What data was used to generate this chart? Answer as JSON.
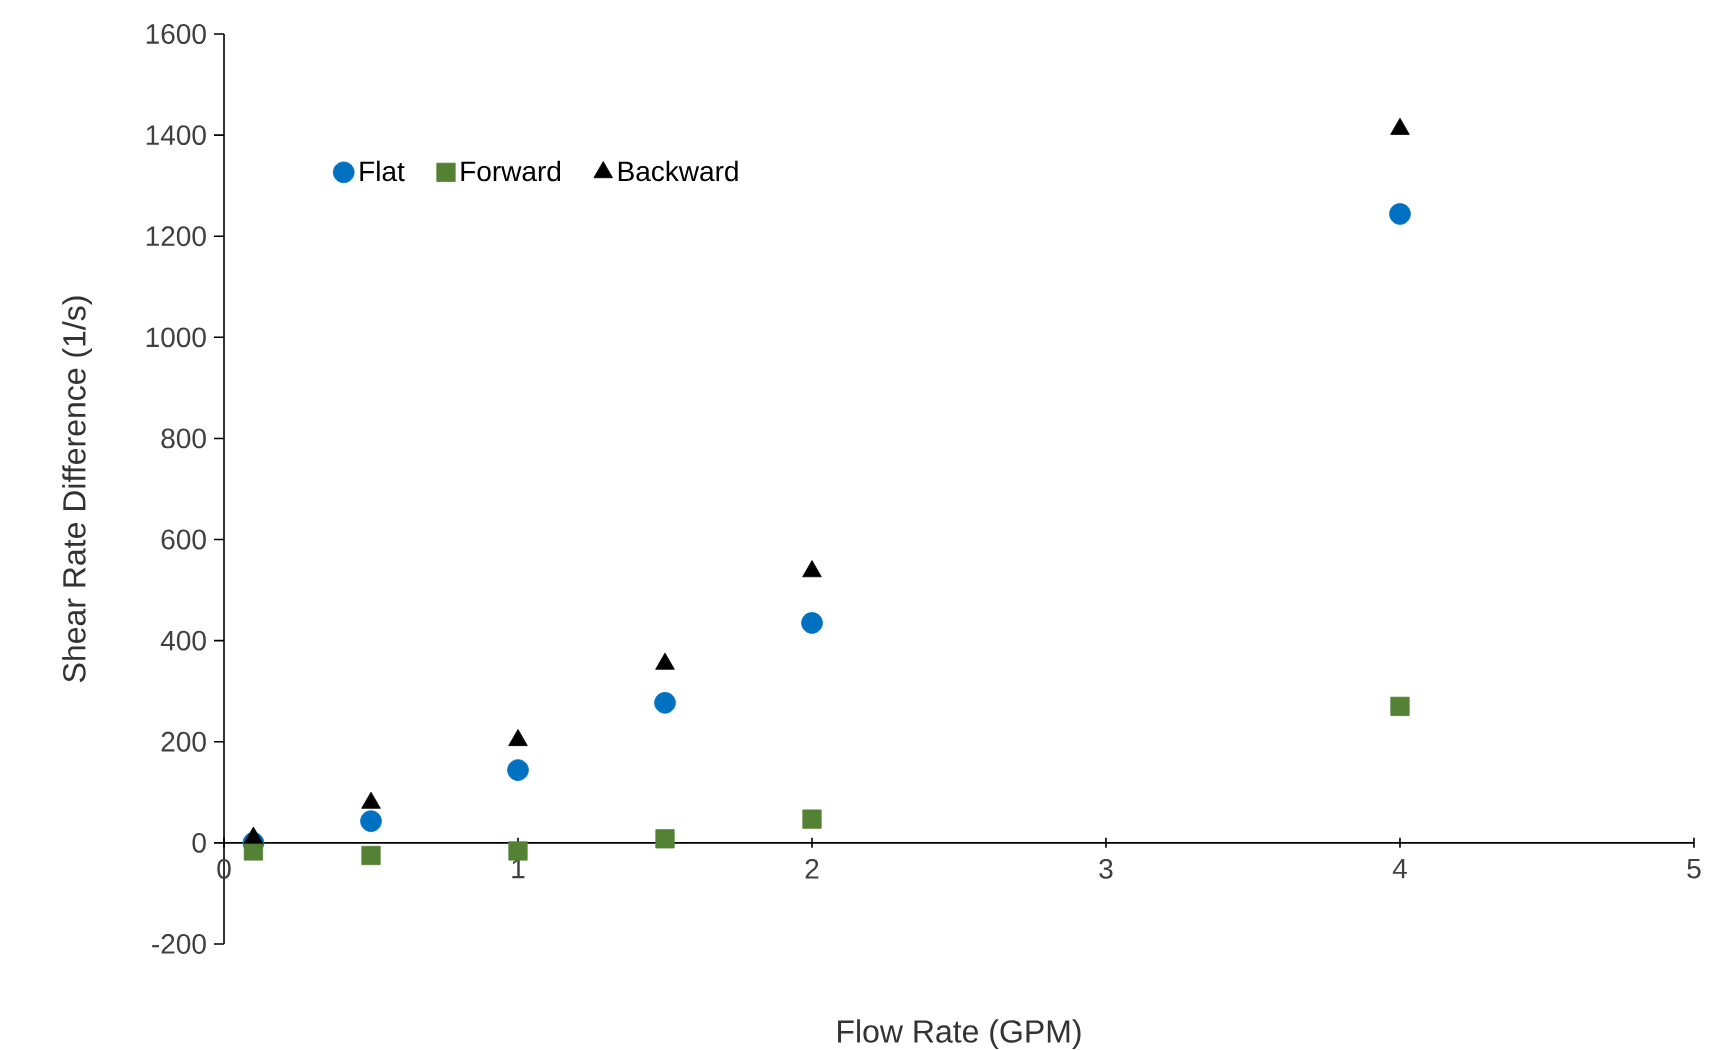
{
  "chart_data": {
    "type": "scatter",
    "xlabel": "Flow Rate (GPM)",
    "ylabel": "Shear Rate Difference (1/s)",
    "x": [
      0.1,
      0.5,
      1,
      1.5,
      2,
      4
    ],
    "series": [
      {
        "name": "Flat",
        "color": "#0070c0",
        "marker": "circle",
        "values": [
          0,
          43,
          144,
          277,
          435,
          1244
        ]
      },
      {
        "name": "Forward",
        "color": "#548235",
        "marker": "square",
        "values": [
          -16,
          -25,
          -16,
          8,
          47,
          270
        ]
      },
      {
        "name": "Backward",
        "color": "#000000",
        "marker": "triangle",
        "values": [
          10,
          79,
          203,
          354,
          537,
          1412
        ]
      }
    ],
    "xlim": [
      0,
      5
    ],
    "xticks": [
      0,
      1,
      2,
      3,
      4,
      5
    ],
    "ylim": [
      -200,
      1600
    ],
    "yticks": [
      -200,
      0,
      200,
      400,
      600,
      800,
      1000,
      1200,
      1400,
      1600
    ],
    "grid": false,
    "legend": "top left"
  }
}
